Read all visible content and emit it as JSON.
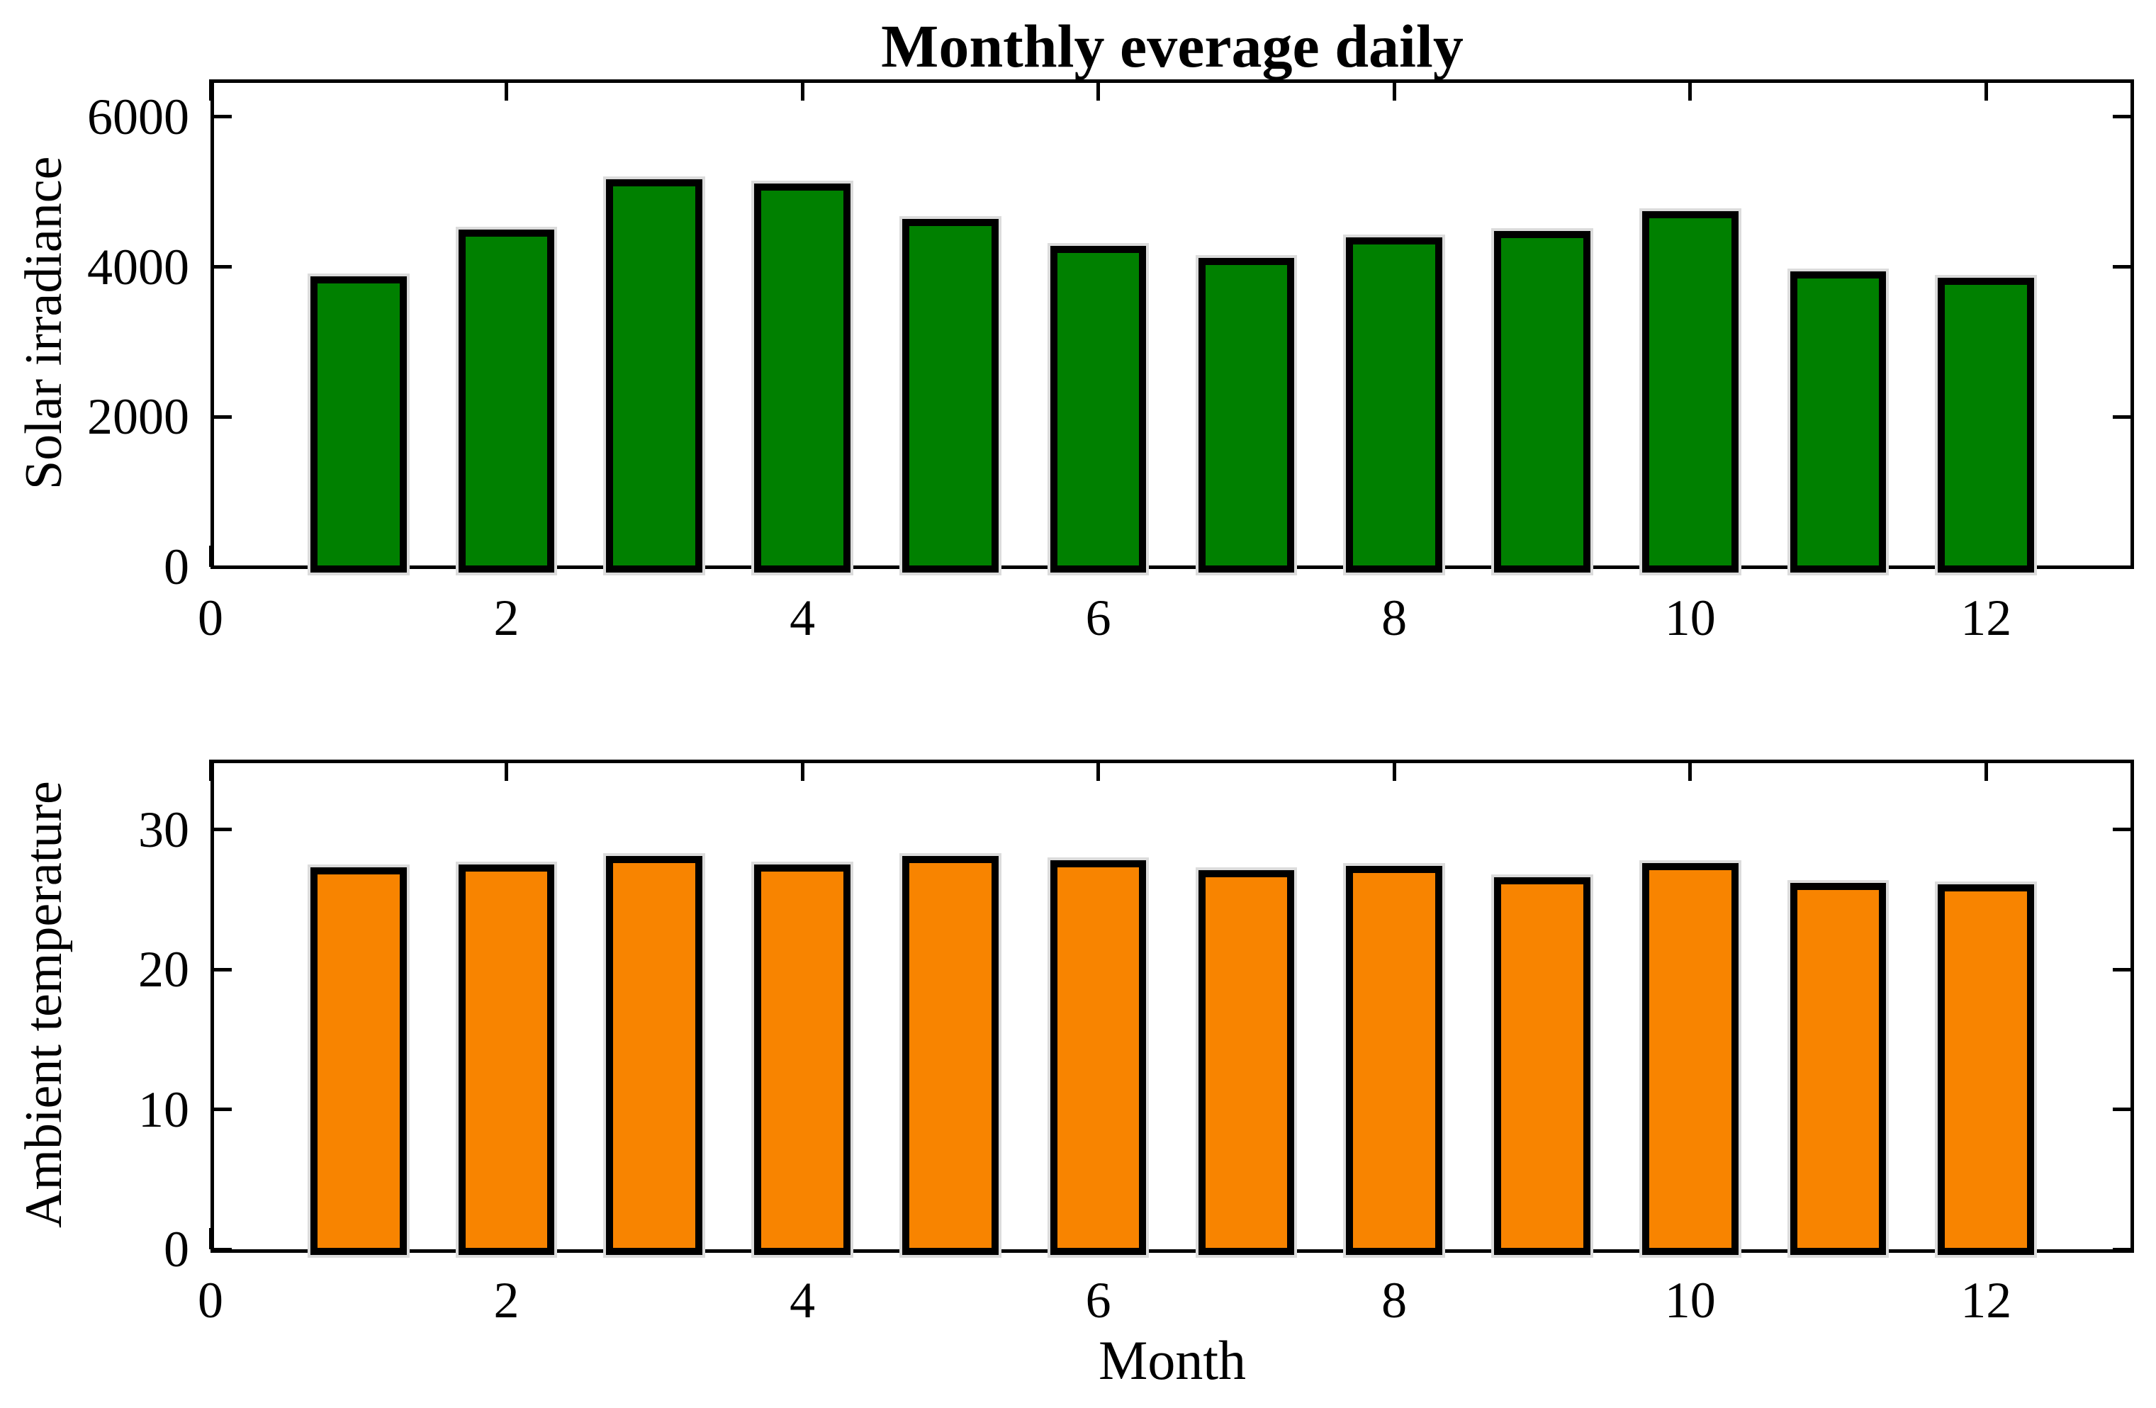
{
  "figure": {
    "background": "#ffffff",
    "title": "Monthly everage daily"
  },
  "chart_data": [
    {
      "type": "bar",
      "panel": "top",
      "title": "Monthly everage daily",
      "xlabel": "",
      "ylabel": "Solar irradiance",
      "categories": [
        1,
        2,
        3,
        4,
        5,
        6,
        7,
        8,
        9,
        10,
        11,
        12
      ],
      "values": [
        3870,
        4500,
        5170,
        5110,
        4640,
        4280,
        4120,
        4390,
        4480,
        4740,
        3940,
        3850
      ],
      "xlim": [
        0,
        13
      ],
      "ylim": [
        0,
        6500
      ],
      "xticks": [
        0,
        2,
        4,
        6,
        8,
        10,
        12
      ],
      "yticks": [
        0,
        2000,
        4000,
        6000
      ],
      "grid": false,
      "legend": null,
      "bar_color": "#008000",
      "bar_edge_color": "#000000"
    },
    {
      "type": "bar",
      "panel": "bottom",
      "title": "",
      "xlabel": "Month",
      "ylabel": "Ambient temperature",
      "categories": [
        1,
        2,
        3,
        4,
        5,
        6,
        7,
        8,
        9,
        10,
        11,
        12
      ],
      "values": [
        27.3,
        27.5,
        28.1,
        27.5,
        28.1,
        27.8,
        27.1,
        27.4,
        26.6,
        27.6,
        26.2,
        26.1
      ],
      "xlim": [
        0,
        13
      ],
      "ylim": [
        0,
        35
      ],
      "xticks": [
        0,
        2,
        4,
        6,
        8,
        10,
        12
      ],
      "yticks": [
        0,
        10,
        20,
        30
      ],
      "grid": false,
      "legend": null,
      "bar_color": "#f88400",
      "bar_edge_color": "#000000"
    }
  ]
}
